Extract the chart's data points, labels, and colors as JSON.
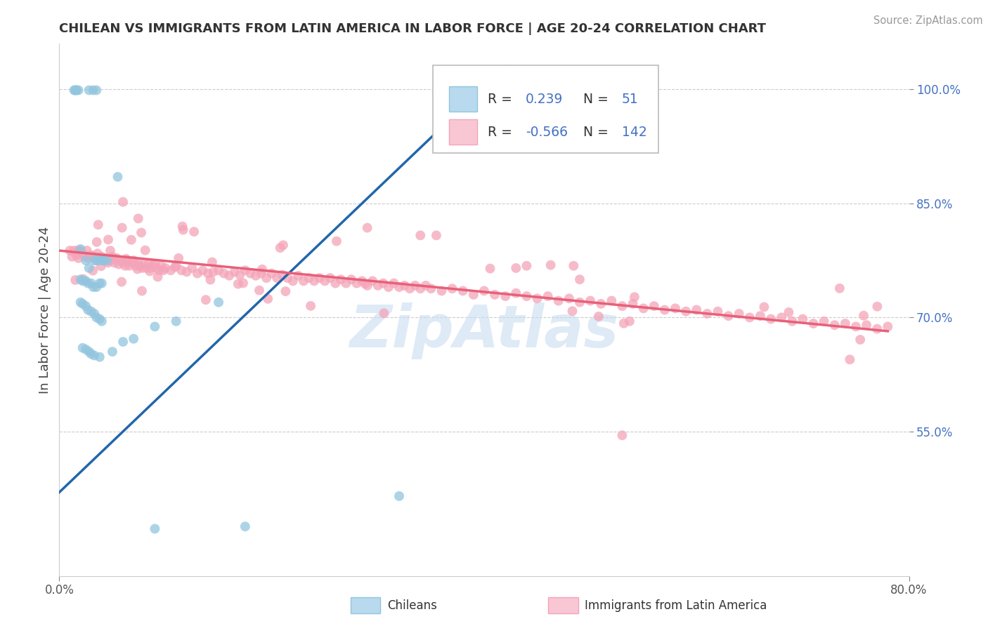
{
  "title": "CHILEAN VS IMMIGRANTS FROM LATIN AMERICA IN LABOR FORCE | AGE 20-24 CORRELATION CHART",
  "source": "Source: ZipAtlas.com",
  "ylabel": "In Labor Force | Age 20-24",
  "xlim": [
    0.0,
    0.8
  ],
  "ylim": [
    0.36,
    1.06
  ],
  "yticks": [
    0.55,
    0.7,
    0.85,
    1.0
  ],
  "ytick_labels": [
    "55.0%",
    "70.0%",
    "85.0%",
    "100.0%"
  ],
  "xtick_labels": [
    "0.0%",
    "80.0%"
  ],
  "chilean_R": 0.239,
  "chilean_N": 51,
  "immigrant_R": -0.566,
  "immigrant_N": 142,
  "blue_scatter_color": "#92c5de",
  "pink_scatter_color": "#f4a4b8",
  "blue_line_color": "#2166ac",
  "pink_line_color": "#e8607a",
  "legend_blue_fill": "#b8d9ee",
  "legend_pink_fill": "#f9c7d4",
  "legend_blue_edge": "#92c5de",
  "legend_pink_edge": "#f4a4b8",
  "watermark_color": "#c8ddf0",
  "background_color": "#ffffff",
  "grid_color": "#cccccc",
  "title_color": "#333333",
  "source_color": "#999999",
  "ytick_color": "#4472c4",
  "xtick_color": "#555555",
  "ylabel_color": "#444444",
  "legend_text_color": "#222222",
  "legend_R_color": "#4472c4",
  "legend_N_color": "#4472c4",
  "blue_line_x": [
    0.0,
    0.42
  ],
  "blue_line_y": [
    0.47,
    1.03
  ],
  "pink_line_x": [
    0.0,
    0.78
  ],
  "pink_line_y": [
    0.788,
    0.682
  ],
  "chilean_pts": [
    [
      0.014,
      0.999
    ],
    [
      0.015,
      0.999
    ],
    [
      0.016,
      0.999
    ],
    [
      0.016,
      0.999
    ],
    [
      0.018,
      0.999
    ],
    [
      0.028,
      0.999
    ],
    [
      0.032,
      0.999
    ],
    [
      0.035,
      0.999
    ],
    [
      0.055,
      0.885
    ],
    [
      0.02,
      0.79
    ],
    [
      0.025,
      0.775
    ],
    [
      0.028,
      0.765
    ],
    [
      0.033,
      0.775
    ],
    [
      0.035,
      0.775
    ],
    [
      0.037,
      0.775
    ],
    [
      0.04,
      0.775
    ],
    [
      0.042,
      0.775
    ],
    [
      0.045,
      0.775
    ],
    [
      0.02,
      0.75
    ],
    [
      0.022,
      0.748
    ],
    [
      0.025,
      0.748
    ],
    [
      0.027,
      0.745
    ],
    [
      0.03,
      0.745
    ],
    [
      0.032,
      0.74
    ],
    [
      0.035,
      0.74
    ],
    [
      0.038,
      0.745
    ],
    [
      0.04,
      0.745
    ],
    [
      0.02,
      0.72
    ],
    [
      0.022,
      0.718
    ],
    [
      0.025,
      0.715
    ],
    [
      0.027,
      0.71
    ],
    [
      0.03,
      0.708
    ],
    [
      0.033,
      0.705
    ],
    [
      0.035,
      0.7
    ],
    [
      0.038,
      0.698
    ],
    [
      0.04,
      0.695
    ],
    [
      0.022,
      0.66
    ],
    [
      0.025,
      0.658
    ],
    [
      0.028,
      0.655
    ],
    [
      0.03,
      0.652
    ],
    [
      0.033,
      0.65
    ],
    [
      0.038,
      0.648
    ],
    [
      0.05,
      0.655
    ],
    [
      0.06,
      0.668
    ],
    [
      0.07,
      0.672
    ],
    [
      0.09,
      0.688
    ],
    [
      0.11,
      0.695
    ],
    [
      0.15,
      0.72
    ],
    [
      0.09,
      0.422
    ],
    [
      0.175,
      0.425
    ],
    [
      0.32,
      0.465
    ]
  ],
  "immigrant_pts": [
    [
      0.01,
      0.788
    ],
    [
      0.012,
      0.78
    ],
    [
      0.014,
      0.788
    ],
    [
      0.016,
      0.782
    ],
    [
      0.018,
      0.778
    ],
    [
      0.02,
      0.788
    ],
    [
      0.022,
      0.784
    ],
    [
      0.024,
      0.78
    ],
    [
      0.026,
      0.788
    ],
    [
      0.028,
      0.778
    ],
    [
      0.03,
      0.782
    ],
    [
      0.032,
      0.78
    ],
    [
      0.034,
      0.778
    ],
    [
      0.036,
      0.784
    ],
    [
      0.038,
      0.778
    ],
    [
      0.04,
      0.78
    ],
    [
      0.042,
      0.775
    ],
    [
      0.044,
      0.778
    ],
    [
      0.046,
      0.772
    ],
    [
      0.048,
      0.775
    ],
    [
      0.05,
      0.78
    ],
    [
      0.052,
      0.772
    ],
    [
      0.054,
      0.778
    ],
    [
      0.056,
      0.77
    ],
    [
      0.058,
      0.775
    ],
    [
      0.06,
      0.772
    ],
    [
      0.062,
      0.768
    ],
    [
      0.064,
      0.775
    ],
    [
      0.066,
      0.768
    ],
    [
      0.068,
      0.772
    ],
    [
      0.07,
      0.775
    ],
    [
      0.072,
      0.768
    ],
    [
      0.074,
      0.772
    ],
    [
      0.076,
      0.768
    ],
    [
      0.078,
      0.765
    ],
    [
      0.08,
      0.77
    ],
    [
      0.082,
      0.765
    ],
    [
      0.084,
      0.77
    ],
    [
      0.086,
      0.765
    ],
    [
      0.088,
      0.768
    ],
    [
      0.09,
      0.77
    ],
    [
      0.092,
      0.765
    ],
    [
      0.094,
      0.762
    ],
    [
      0.096,
      0.768
    ],
    [
      0.098,
      0.762
    ],
    [
      0.1,
      0.765
    ],
    [
      0.105,
      0.762
    ],
    [
      0.11,
      0.768
    ],
    [
      0.115,
      0.762
    ],
    [
      0.12,
      0.76
    ],
    [
      0.125,
      0.765
    ],
    [
      0.13,
      0.758
    ],
    [
      0.135,
      0.762
    ],
    [
      0.14,
      0.758
    ],
    [
      0.145,
      0.76
    ],
    [
      0.15,
      0.762
    ],
    [
      0.155,
      0.758
    ],
    [
      0.16,
      0.755
    ],
    [
      0.165,
      0.76
    ],
    [
      0.17,
      0.756
    ],
    [
      0.175,
      0.762
    ],
    [
      0.18,
      0.758
    ],
    [
      0.185,
      0.755
    ],
    [
      0.19,
      0.758
    ],
    [
      0.195,
      0.752
    ],
    [
      0.2,
      0.758
    ],
    [
      0.205,
      0.752
    ],
    [
      0.21,
      0.756
    ],
    [
      0.215,
      0.752
    ],
    [
      0.22,
      0.748
    ],
    [
      0.225,
      0.755
    ],
    [
      0.23,
      0.748
    ],
    [
      0.235,
      0.752
    ],
    [
      0.24,
      0.748
    ],
    [
      0.245,
      0.752
    ],
    [
      0.25,
      0.748
    ],
    [
      0.255,
      0.752
    ],
    [
      0.26,
      0.745
    ],
    [
      0.265,
      0.75
    ],
    [
      0.27,
      0.745
    ],
    [
      0.275,
      0.75
    ],
    [
      0.28,
      0.745
    ],
    [
      0.285,
      0.748
    ],
    [
      0.29,
      0.742
    ],
    [
      0.295,
      0.748
    ],
    [
      0.3,
      0.742
    ],
    [
      0.305,
      0.745
    ],
    [
      0.31,
      0.74
    ],
    [
      0.315,
      0.745
    ],
    [
      0.32,
      0.74
    ],
    [
      0.325,
      0.742
    ],
    [
      0.33,
      0.738
    ],
    [
      0.335,
      0.742
    ],
    [
      0.34,
      0.738
    ],
    [
      0.345,
      0.742
    ],
    [
      0.35,
      0.738
    ],
    [
      0.36,
      0.735
    ],
    [
      0.37,
      0.738
    ],
    [
      0.38,
      0.735
    ],
    [
      0.39,
      0.73
    ],
    [
      0.4,
      0.735
    ],
    [
      0.41,
      0.73
    ],
    [
      0.42,
      0.728
    ],
    [
      0.43,
      0.732
    ],
    [
      0.44,
      0.728
    ],
    [
      0.45,
      0.725
    ],
    [
      0.46,
      0.728
    ],
    [
      0.47,
      0.722
    ],
    [
      0.48,
      0.725
    ],
    [
      0.49,
      0.72
    ],
    [
      0.5,
      0.722
    ],
    [
      0.51,
      0.718
    ],
    [
      0.52,
      0.722
    ],
    [
      0.53,
      0.715
    ],
    [
      0.54,
      0.718
    ],
    [
      0.55,
      0.712
    ],
    [
      0.56,
      0.715
    ],
    [
      0.57,
      0.71
    ],
    [
      0.58,
      0.712
    ],
    [
      0.59,
      0.708
    ],
    [
      0.6,
      0.71
    ],
    [
      0.61,
      0.705
    ],
    [
      0.62,
      0.708
    ],
    [
      0.63,
      0.702
    ],
    [
      0.64,
      0.705
    ],
    [
      0.65,
      0.7
    ],
    [
      0.66,
      0.702
    ],
    [
      0.67,
      0.698
    ],
    [
      0.68,
      0.7
    ],
    [
      0.69,
      0.695
    ],
    [
      0.7,
      0.698
    ],
    [
      0.71,
      0.692
    ],
    [
      0.72,
      0.695
    ],
    [
      0.73,
      0.69
    ],
    [
      0.74,
      0.692
    ],
    [
      0.75,
      0.688
    ],
    [
      0.76,
      0.69
    ],
    [
      0.77,
      0.685
    ],
    [
      0.78,
      0.688
    ],
    [
      0.06,
      0.852
    ],
    [
      0.29,
      0.818
    ],
    [
      0.34,
      0.808
    ],
    [
      0.355,
      0.808
    ],
    [
      0.43,
      0.765
    ],
    [
      0.44,
      0.768
    ],
    [
      0.49,
      0.75
    ],
    [
      0.53,
      0.545
    ]
  ]
}
